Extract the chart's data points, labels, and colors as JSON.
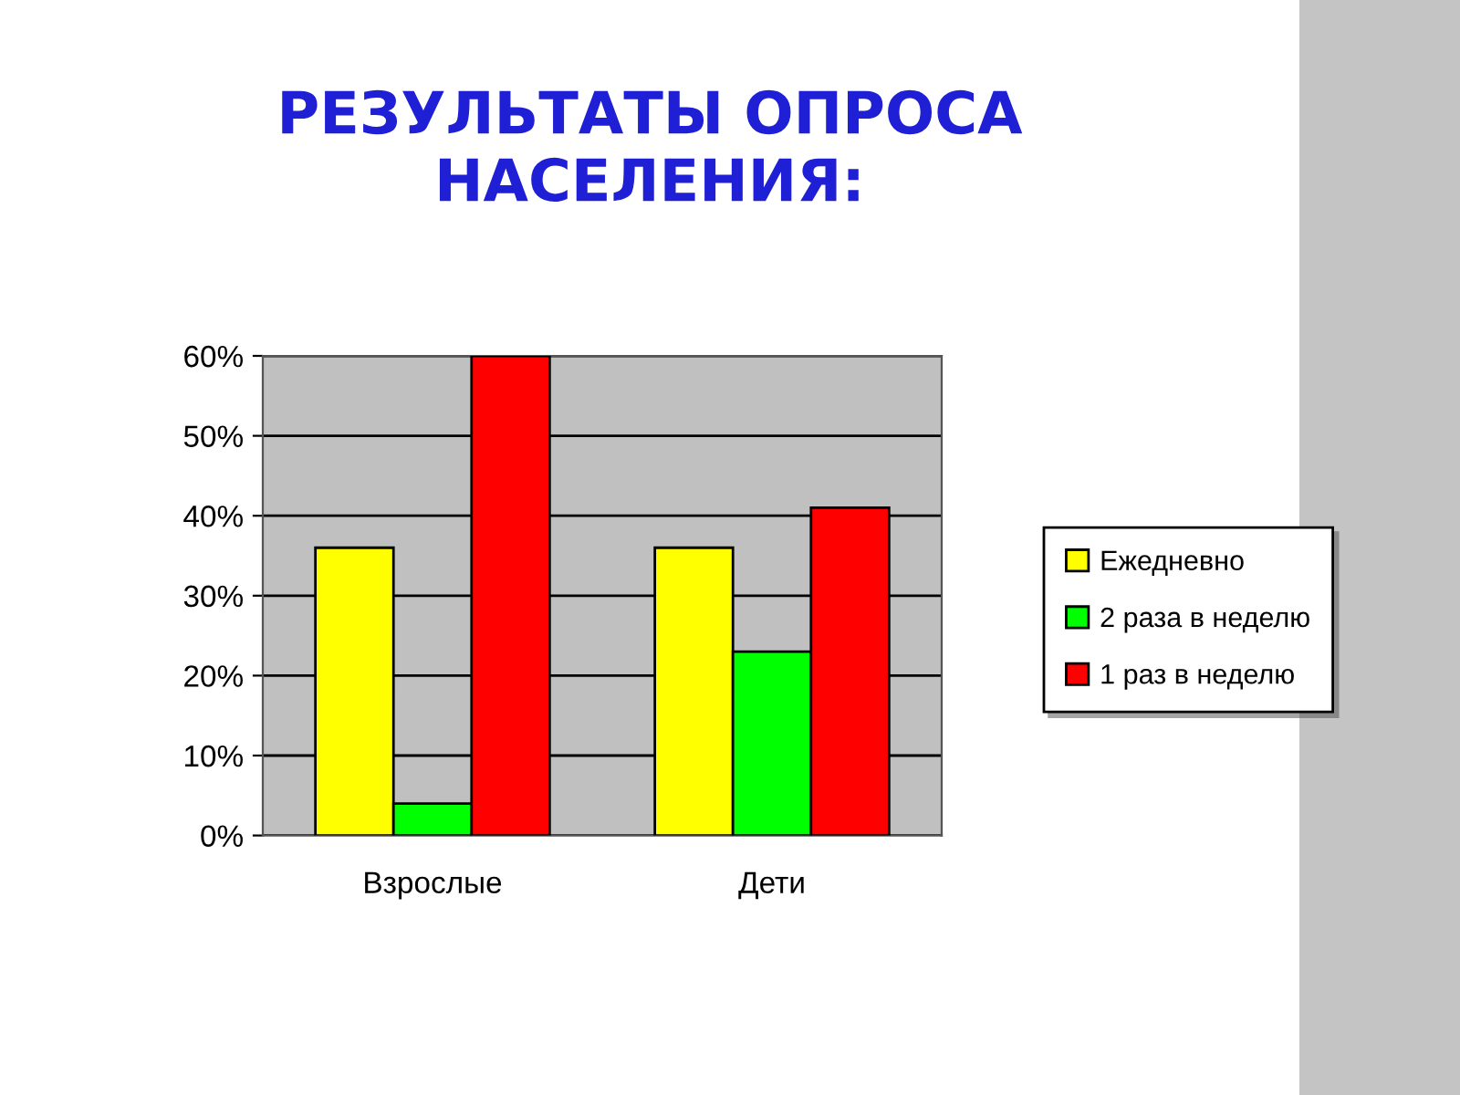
{
  "chart_data": {
    "type": "bar",
    "title": "РЕЗУЛЬТАТЫ ОПРОСА\nНАСЕЛЕНИЯ:",
    "categories": [
      "Взрослые",
      "Дети"
    ],
    "series": [
      {
        "name": "Ежедневно",
        "color": "#ffff00",
        "values": [
          36,
          36
        ]
      },
      {
        "name": "2 раза в неделю",
        "color": "#00ff00",
        "values": [
          4,
          23
        ]
      },
      {
        "name": "1 раз в неделю",
        "color": "#ff0000",
        "values": [
          60,
          41
        ]
      }
    ],
    "ylim": [
      0,
      60
    ],
    "yticks": [
      {
        "value": 0,
        "label": "0%"
      },
      {
        "value": 10,
        "label": "10%"
      },
      {
        "value": 20,
        "label": "20%"
      },
      {
        "value": 30,
        "label": "30%"
      },
      {
        "value": 40,
        "label": "40%"
      },
      {
        "value": 50,
        "label": "50%"
      },
      {
        "value": 60,
        "label": "60%"
      }
    ],
    "grid": "y",
    "legend": "right"
  }
}
